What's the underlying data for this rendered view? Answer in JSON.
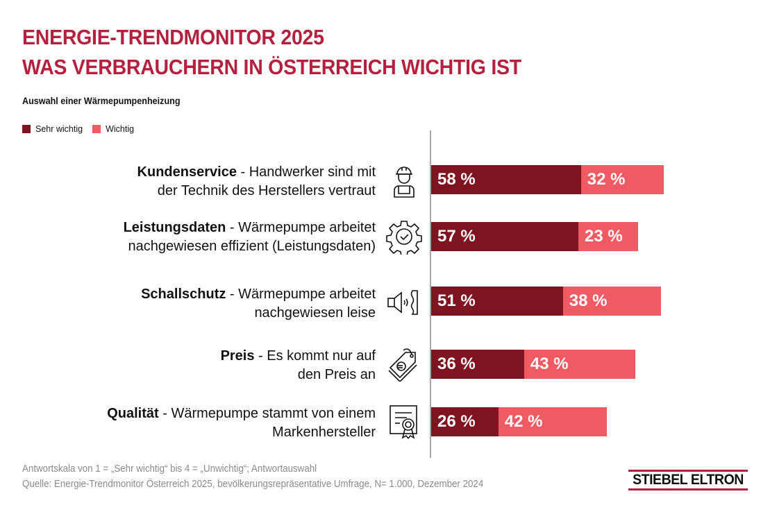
{
  "header": {
    "title_line1": "ENERGIE-TRENDMONITOR 2025",
    "title_line2": "WAS VERBRAUCHERN IN ÖSTERREICH WICHTIG IST",
    "subtitle": "Auswahl einer Wärmepumpenheizung"
  },
  "legend": [
    {
      "label": "Sehr wichtig",
      "color": "#7d1420"
    },
    {
      "label": "Wichtig",
      "color": "#f05a63"
    }
  ],
  "rows": [
    {
      "bold": "Kundenservice",
      "line1": " - Handwerker sind mit",
      "line2": "der Technik des Herstellers vertraut",
      "icon": "worker-icon"
    },
    {
      "bold": "Leistungsdaten",
      "line1": " - Wärmepumpe arbeitet",
      "line2": "nachgewiesen effizient (Leistungsdaten)",
      "icon": "gear-check-icon"
    },
    {
      "bold": "Schallschutz",
      "line1": " - Wärmepumpe arbeitet",
      "line2": "nachgewiesen leise",
      "icon": "speaker-icon"
    },
    {
      "bold": "Preis",
      "line1": " - Es kommt nur auf",
      "line2": "den Preis an",
      "icon": "price-tag-euro-icon"
    },
    {
      "bold": "Qualität",
      "line1": " - Wärmepumpe stammt von einem",
      "line2": "Markenhersteller",
      "icon": "certificate-icon"
    }
  ],
  "chart_data": {
    "type": "bar",
    "orientation": "horizontal",
    "stacked": true,
    "title": "ENERGIE-TRENDMONITOR 2025 – WAS VERBRAUCHERN IN ÖSTERREICH WICHTIG IST",
    "subtitle": "Auswahl einer Wärmepumpenheizung",
    "categories": [
      "Kundenservice",
      "Leistungsdaten",
      "Schallschutz",
      "Preis",
      "Qualität"
    ],
    "series": [
      {
        "name": "Sehr wichtig",
        "values": [
          58,
          57,
          51,
          36,
          26
        ],
        "labels": [
          "58 %",
          "57 %",
          "51 %",
          "36 %",
          "26 %"
        ],
        "color": "#7d1420"
      },
      {
        "name": "Wichtig",
        "values": [
          32,
          23,
          38,
          43,
          42
        ],
        "labels": [
          "32 %",
          "23 %",
          "38 %",
          "43 %",
          "42 %"
        ],
        "color": "#f05a63"
      }
    ],
    "unit": "%",
    "xlim": [
      0,
      100
    ],
    "grid": false,
    "legend_position": "top-left"
  },
  "footer": {
    "note1": "Antwortskala von 1 = „Sehr wichtig“ bis 4 = „Unwichtig“; Antwortauswahl",
    "note2": "Quelle: Energie-Trendmonitor Österreich 2025, bevölkerungsrepräsentative Umfrage, N= 1.000, Dezember 2024",
    "logo_text": "STIEBEL ELTRON"
  }
}
